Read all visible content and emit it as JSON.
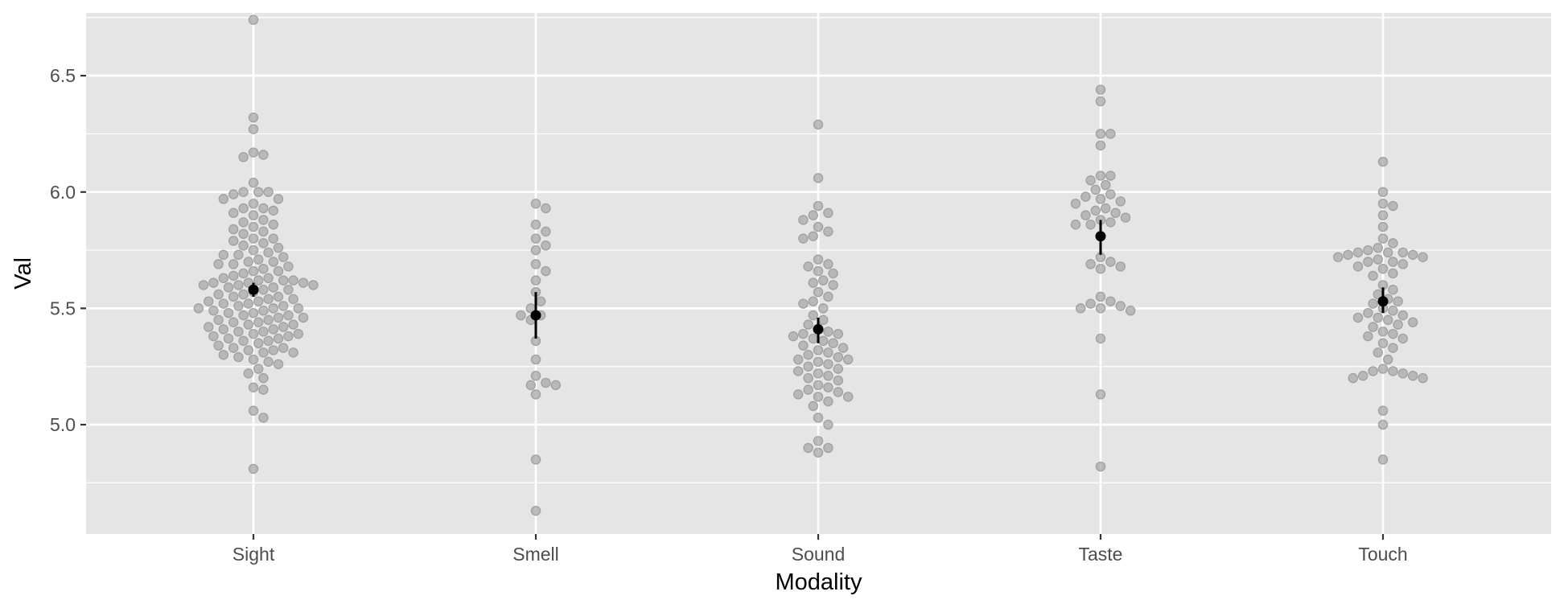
{
  "chart_data": {
    "type": "scatter",
    "subtype": "beeswarm with mean and error bars",
    "xlabel": "Modality",
    "ylabel": "Val",
    "categories": [
      "Sight",
      "Smell",
      "Sound",
      "Taste",
      "Touch"
    ],
    "ylim": [
      4.53,
      6.77
    ],
    "y_ticks": [
      5.0,
      5.5,
      6.0,
      6.5
    ],
    "y_tick_labels": [
      "5.0",
      "5.5",
      "6.0",
      "6.5"
    ],
    "grid": true,
    "legend": "none",
    "colors": {
      "panel_background": "#e5e5e5",
      "grid": "#ffffff",
      "points": "#a6a6a6",
      "summary": "#000000"
    },
    "summary": [
      {
        "category": "Sight",
        "mean": 5.58,
        "lower": 5.55,
        "upper": 5.61
      },
      {
        "category": "Smell",
        "mean": 5.47,
        "lower": 5.37,
        "upper": 5.57
      },
      {
        "category": "Sound",
        "mean": 5.41,
        "lower": 5.35,
        "upper": 5.46
      },
      {
        "category": "Taste",
        "mean": 5.81,
        "lower": 5.73,
        "upper": 5.88
      },
      {
        "category": "Touch",
        "mean": 5.53,
        "lower": 5.48,
        "upper": 5.59
      }
    ],
    "series": [
      {
        "category": "Sight",
        "values": [
          6.74,
          6.32,
          6.27,
          6.17,
          6.16,
          6.15,
          6.04,
          6.0,
          6.0,
          6.0,
          5.99,
          5.97,
          5.97,
          5.95,
          5.93,
          5.93,
          5.92,
          5.91,
          5.9,
          5.88,
          5.87,
          5.86,
          5.85,
          5.84,
          5.83,
          5.82,
          5.8,
          5.8,
          5.79,
          5.78,
          5.77,
          5.76,
          5.75,
          5.74,
          5.73,
          5.73,
          5.72,
          5.71,
          5.7,
          5.7,
          5.69,
          5.69,
          5.68,
          5.67,
          5.66,
          5.66,
          5.65,
          5.64,
          5.63,
          5.63,
          5.62,
          5.62,
          5.62,
          5.61,
          5.61,
          5.61,
          5.6,
          5.6,
          5.6,
          5.59,
          5.59,
          5.58,
          5.58,
          5.57,
          5.56,
          5.56,
          5.55,
          5.55,
          5.54,
          5.54,
          5.53,
          5.53,
          5.52,
          5.52,
          5.51,
          5.51,
          5.5,
          5.5,
          5.5,
          5.49,
          5.49,
          5.48,
          5.48,
          5.47,
          5.47,
          5.46,
          5.46,
          5.45,
          5.45,
          5.44,
          5.44,
          5.43,
          5.43,
          5.42,
          5.42,
          5.41,
          5.41,
          5.4,
          5.4,
          5.39,
          5.39,
          5.38,
          5.38,
          5.37,
          5.37,
          5.36,
          5.36,
          5.35,
          5.34,
          5.33,
          5.33,
          5.32,
          5.32,
          5.31,
          5.31,
          5.3,
          5.29,
          5.28,
          5.27,
          5.26,
          5.24,
          5.22,
          5.2,
          5.16,
          5.15,
          5.06,
          5.03,
          4.81
        ]
      },
      {
        "category": "Smell",
        "values": [
          5.95,
          5.93,
          5.86,
          5.83,
          5.8,
          5.77,
          5.75,
          5.69,
          5.66,
          5.62,
          5.57,
          5.53,
          5.5,
          5.47,
          5.47,
          5.45,
          5.36,
          5.28,
          5.21,
          5.18,
          5.17,
          5.17,
          5.13,
          4.85,
          4.63
        ]
      },
      {
        "category": "Sound",
        "values": [
          6.29,
          6.06,
          5.94,
          5.91,
          5.9,
          5.88,
          5.85,
          5.83,
          5.81,
          5.8,
          5.71,
          5.69,
          5.68,
          5.66,
          5.65,
          5.62,
          5.61,
          5.6,
          5.57,
          5.55,
          5.53,
          5.52,
          5.5,
          5.47,
          5.45,
          5.43,
          5.41,
          5.4,
          5.39,
          5.39,
          5.38,
          5.37,
          5.36,
          5.35,
          5.34,
          5.33,
          5.32,
          5.31,
          5.3,
          5.29,
          5.28,
          5.28,
          5.27,
          5.26,
          5.25,
          5.24,
          5.23,
          5.22,
          5.21,
          5.2,
          5.19,
          5.17,
          5.16,
          5.15,
          5.14,
          5.13,
          5.12,
          5.12,
          5.1,
          5.08,
          5.03,
          5.0,
          4.93,
          4.9,
          4.9,
          4.88
        ]
      },
      {
        "category": "Taste",
        "values": [
          6.44,
          6.39,
          6.25,
          6.25,
          6.2,
          6.07,
          6.07,
          6.05,
          6.03,
          6.01,
          5.99,
          5.98,
          5.97,
          5.96,
          5.95,
          5.93,
          5.92,
          5.91,
          5.9,
          5.89,
          5.88,
          5.87,
          5.86,
          5.86,
          5.72,
          5.7,
          5.69,
          5.68,
          5.67,
          5.55,
          5.53,
          5.52,
          5.51,
          5.5,
          5.5,
          5.49,
          5.37,
          5.13,
          4.82
        ]
      },
      {
        "category": "Touch",
        "values": [
          6.13,
          6.0,
          5.95,
          5.94,
          5.9,
          5.85,
          5.8,
          5.78,
          5.76,
          5.75,
          5.74,
          5.74,
          5.74,
          5.73,
          5.73,
          5.72,
          5.72,
          5.71,
          5.7,
          5.7,
          5.69,
          5.68,
          5.67,
          5.65,
          5.64,
          5.6,
          5.58,
          5.56,
          5.54,
          5.53,
          5.52,
          5.5,
          5.49,
          5.48,
          5.47,
          5.46,
          5.46,
          5.45,
          5.44,
          5.43,
          5.42,
          5.4,
          5.39,
          5.38,
          5.37,
          5.35,
          5.33,
          5.31,
          5.28,
          5.24,
          5.23,
          5.23,
          5.22,
          5.21,
          5.21,
          5.2,
          5.2,
          5.06,
          5.0,
          4.85
        ]
      }
    ]
  }
}
